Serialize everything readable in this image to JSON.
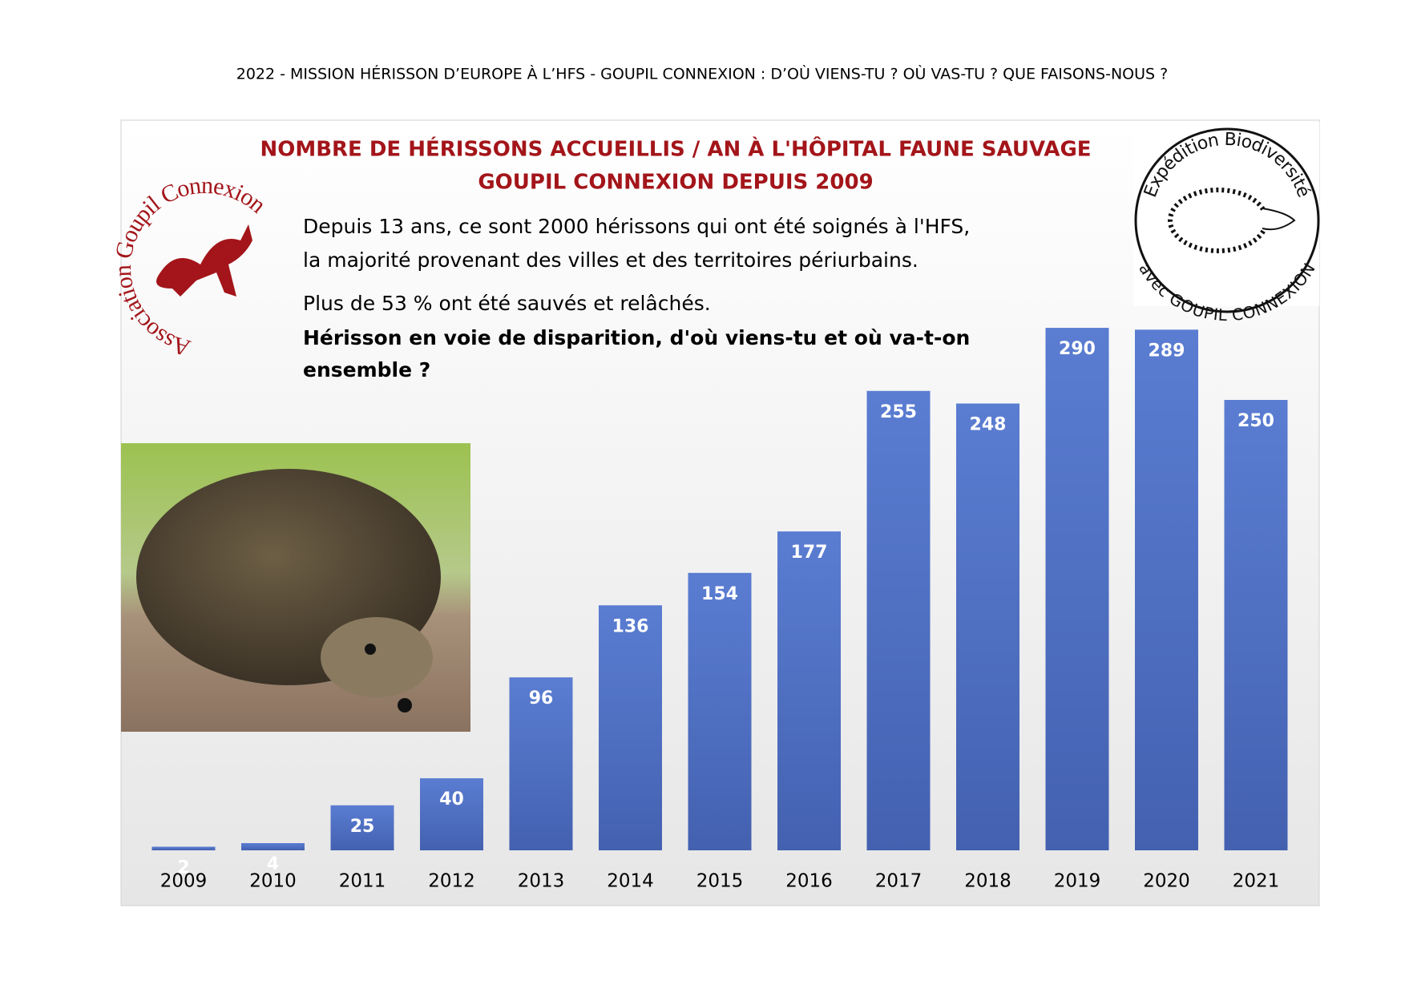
{
  "page_header": "2022 - MISSION HÉRISSON D’EUROPE À L’HFS - GOUPIL CONNEXION : D’OÙ VIENS-TU ? OÙ VAS-TU ? QUE FAISONS-NOUS ?",
  "logos": {
    "left": "Association Goupil Connexion",
    "right_top": "Expédition Biodiversité",
    "right_bottom": "avec GOUPIL CONNEXION"
  },
  "chart_data": {
    "type": "bar",
    "title_lines": [
      "NOMBRE DE HÉRISSONS ACCUEILLIS / AN À L'HÔPITAL FAUNE SAUVAGE",
      "GOUPIL CONNEXION DEPUIS 2009"
    ],
    "annotations": [
      {
        "text": "Depuis 13 ans, ce sont 2000 hérissons qui ont été soignés à l'HFS,",
        "bold": false
      },
      {
        "text": "la majorité provenant des villes et des territoires périurbains.",
        "bold": false
      },
      {
        "text": "Plus de 53 % ont été sauvés et relâchés.",
        "bold": false
      },
      {
        "text": "Hérisson en voie de disparition, d'où viens-tu et où va-t-on",
        "bold": true
      },
      {
        "text": "ensemble ?",
        "bold": true
      }
    ],
    "categories": [
      "2009",
      "2010",
      "2011",
      "2012",
      "2013",
      "2014",
      "2015",
      "2016",
      "2017",
      "2018",
      "2019",
      "2020",
      "2021"
    ],
    "values": [
      2,
      4,
      25,
      40,
      96,
      136,
      154,
      177,
      255,
      248,
      290,
      289,
      250
    ],
    "color": "#5274c8",
    "title_color": "#a3151a",
    "grid": false
  }
}
